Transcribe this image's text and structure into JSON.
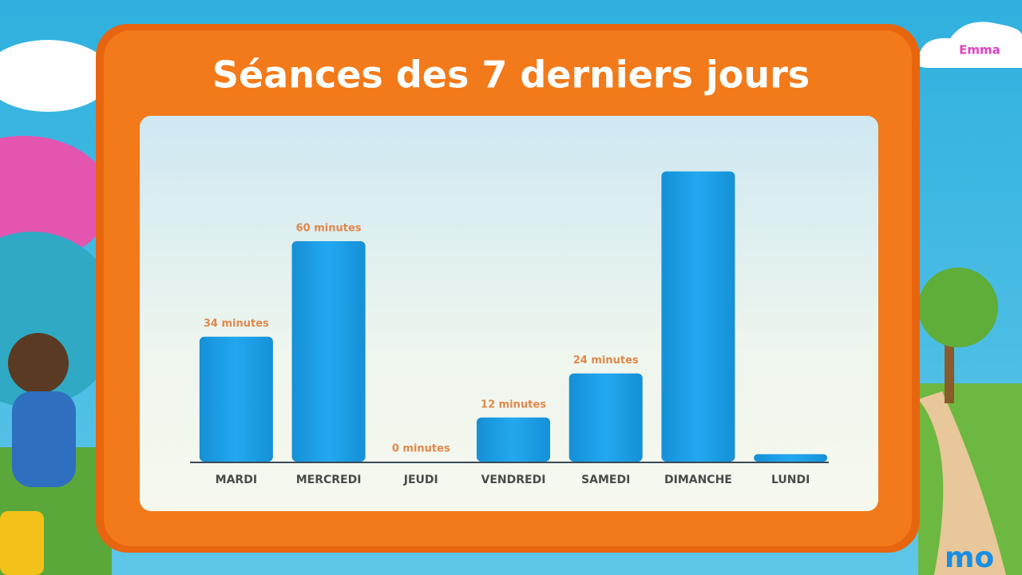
{
  "user": "Emma",
  "logo": "mo",
  "chart_data": {
    "type": "bar",
    "title": "Séances des 7 derniers jours",
    "categories": [
      "MARDI",
      "MERCREDI",
      "JEUDI",
      "VENDREDI",
      "SAMEDI",
      "DIMANCHE",
      "LUNDI"
    ],
    "values": [
      34,
      60,
      0,
      12,
      24,
      79,
      2
    ],
    "value_labels": [
      "34 minutes",
      "60 minutes",
      "0 minutes",
      "12 minutes",
      "24 minutes",
      null,
      null
    ],
    "color": "#1ea3ea",
    "ylim": [
      0,
      80
    ]
  }
}
